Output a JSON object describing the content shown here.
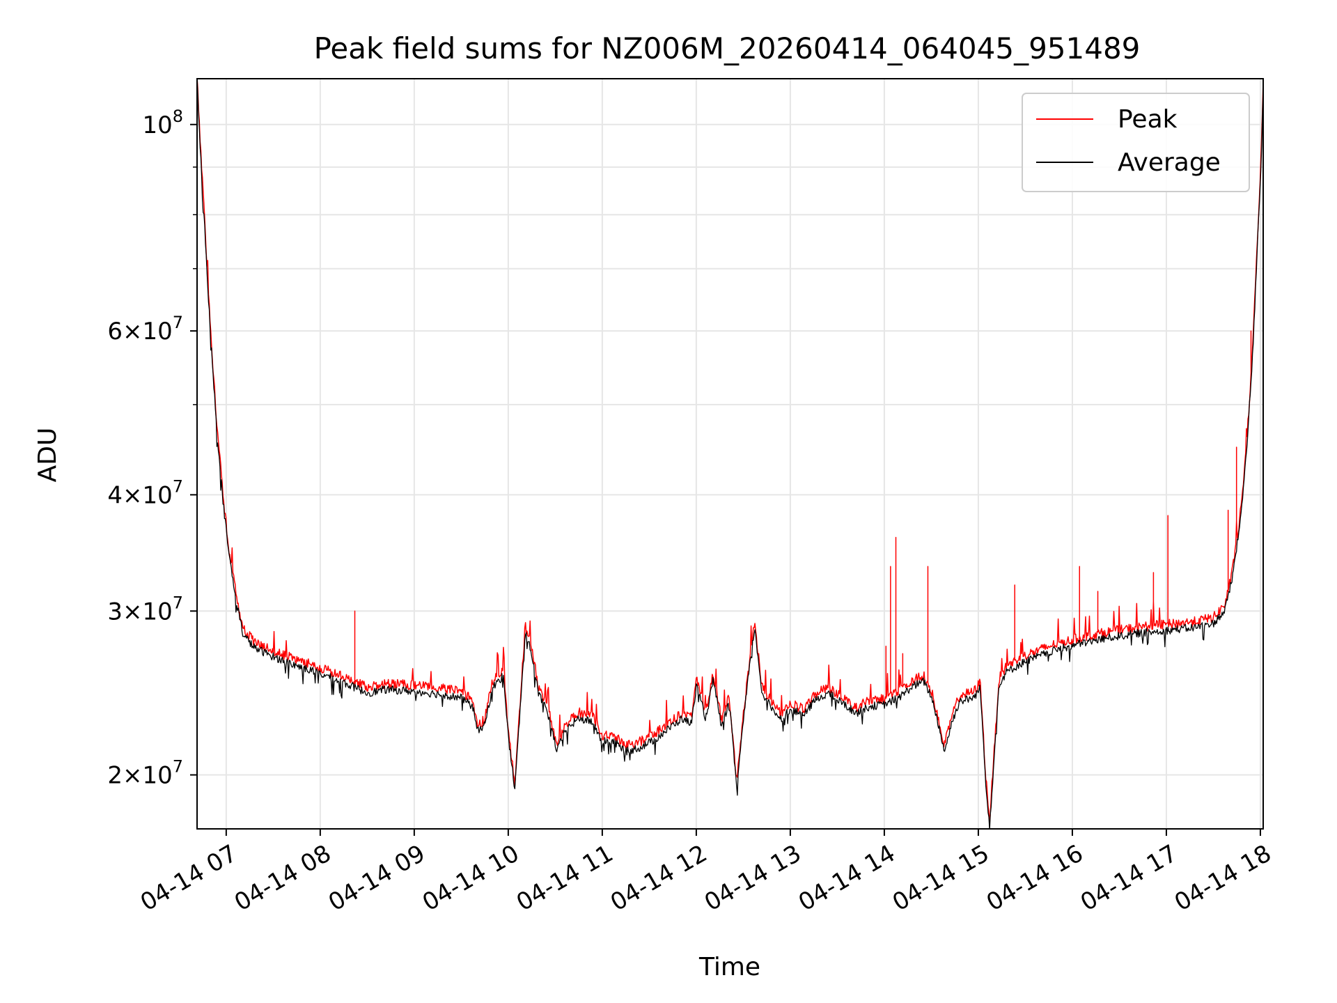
{
  "chart_data": {
    "type": "line",
    "title": "Peak field sums for NZ006M_20260414_064045_951489",
    "xlabel": "Time",
    "ylabel": "ADU",
    "yscale": "log",
    "ylim": [
      17500000,
      112000000
    ],
    "xlim_hours": [
      6.69,
      18.03
    ],
    "grid": true,
    "legend_position": "top-right",
    "x_ticks": [
      {
        "hour": 7,
        "label": "04-14 07"
      },
      {
        "hour": 8,
        "label": "04-14 08"
      },
      {
        "hour": 9,
        "label": "04-14 09"
      },
      {
        "hour": 10,
        "label": "04-14 10"
      },
      {
        "hour": 11,
        "label": "04-14 11"
      },
      {
        "hour": 12,
        "label": "04-14 12"
      },
      {
        "hour": 13,
        "label": "04-14 13"
      },
      {
        "hour": 14,
        "label": "04-14 14"
      },
      {
        "hour": 15,
        "label": "04-14 15"
      },
      {
        "hour": 16,
        "label": "04-14 16"
      },
      {
        "hour": 17,
        "label": "04-14 17"
      },
      {
        "hour": 18,
        "label": "04-14 18"
      }
    ],
    "y_major_ticks": [
      {
        "value": 100000000,
        "mantissa": "",
        "exp": "8"
      },
      {
        "value": 60000000,
        "mantissa": "6",
        "exp": "7"
      },
      {
        "value": 40000000,
        "mantissa": "4",
        "exp": "7"
      },
      {
        "value": 30000000,
        "mantissa": "3",
        "exp": "7"
      },
      {
        "value": 20000000,
        "mantissa": "2",
        "exp": "7"
      }
    ],
    "y_minor_ticks": [
      90000000,
      80000000,
      70000000,
      50000000
    ],
    "series": [
      {
        "name": "Peak",
        "color": "#ff0000",
        "base_offset": 0.015,
        "noise": 0.012,
        "spikes": [
          {
            "hour": 8.37,
            "value": 30000000
          },
          {
            "hour": 14.02,
            "value": 27500000
          },
          {
            "hour": 14.07,
            "value": 33500000
          },
          {
            "hour": 14.12,
            "value": 36000000
          },
          {
            "hour": 14.2,
            "value": 27000000
          },
          {
            "hour": 14.46,
            "value": 33500000
          },
          {
            "hour": 15.39,
            "value": 32000000
          },
          {
            "hour": 16.08,
            "value": 33500000
          },
          {
            "hour": 16.27,
            "value": 31500000
          },
          {
            "hour": 16.86,
            "value": 33000000
          },
          {
            "hour": 17.02,
            "value": 38000000
          },
          {
            "hour": 17.66,
            "value": 38500000
          },
          {
            "hour": 17.75,
            "value": 45000000
          },
          {
            "hour": 17.9,
            "value": 60000000
          }
        ]
      },
      {
        "name": "Average",
        "color": "#000000",
        "base_offset": 0,
        "noise": 0.01,
        "spikes": []
      }
    ],
    "baseline_points": [
      [
        6.69,
        112000000
      ],
      [
        6.72,
        96000000
      ],
      [
        6.77,
        78000000
      ],
      [
        6.83,
        60000000
      ],
      [
        6.9,
        47000000
      ],
      [
        6.97,
        39000000
      ],
      [
        7.03,
        34500000
      ],
      [
        7.1,
        31000000
      ],
      [
        7.18,
        28300000
      ],
      [
        7.3,
        27400000
      ],
      [
        7.5,
        26800000
      ],
      [
        7.7,
        26300000
      ],
      [
        8.0,
        25700000
      ],
      [
        8.3,
        25000000
      ],
      [
        8.5,
        24500000
      ],
      [
        8.7,
        24700000
      ],
      [
        9.0,
        24600000
      ],
      [
        9.3,
        24400000
      ],
      [
        9.5,
        24200000
      ],
      [
        9.62,
        23700000
      ],
      [
        9.68,
        22300000
      ],
      [
        9.75,
        22600000
      ],
      [
        9.83,
        24800000
      ],
      [
        9.95,
        25600000
      ],
      [
        10.0,
        22000000
      ],
      [
        10.07,
        19300000
      ],
      [
        10.12,
        23000000
      ],
      [
        10.18,
        28500000
      ],
      [
        10.25,
        27000000
      ],
      [
        10.32,
        24500000
      ],
      [
        10.42,
        23300000
      ],
      [
        10.52,
        21200000
      ],
      [
        10.6,
        22300000
      ],
      [
        10.75,
        23000000
      ],
      [
        10.9,
        22800000
      ],
      [
        11.0,
        21700000
      ],
      [
        11.1,
        21800000
      ],
      [
        11.25,
        21200000
      ],
      [
        11.4,
        21400000
      ],
      [
        11.55,
        21800000
      ],
      [
        11.7,
        22400000
      ],
      [
        11.85,
        23000000
      ],
      [
        11.95,
        22700000
      ],
      [
        12.0,
        25000000
      ],
      [
        12.1,
        23000000
      ],
      [
        12.18,
        25300000
      ],
      [
        12.27,
        22500000
      ],
      [
        12.35,
        24000000
      ],
      [
        12.43,
        19400000
      ],
      [
        12.5,
        22800000
      ],
      [
        12.56,
        25800000
      ],
      [
        12.62,
        28800000
      ],
      [
        12.7,
        24500000
      ],
      [
        12.8,
        23600000
      ],
      [
        12.9,
        23000000
      ],
      [
        13.0,
        23500000
      ],
      [
        13.15,
        23200000
      ],
      [
        13.25,
        24000000
      ],
      [
        13.4,
        24500000
      ],
      [
        13.55,
        23900000
      ],
      [
        13.7,
        23300000
      ],
      [
        13.85,
        23700000
      ],
      [
        14.0,
        23800000
      ],
      [
        14.15,
        24200000
      ],
      [
        14.3,
        24900000
      ],
      [
        14.42,
        25200000
      ],
      [
        14.5,
        24300000
      ],
      [
        14.57,
        22800000
      ],
      [
        14.64,
        21200000
      ],
      [
        14.72,
        22800000
      ],
      [
        14.8,
        24000000
      ],
      [
        14.95,
        24200000
      ],
      [
        15.02,
        24800000
      ],
      [
        15.08,
        19600000
      ],
      [
        15.12,
        17600000
      ],
      [
        15.17,
        21000000
      ],
      [
        15.22,
        25000000
      ],
      [
        15.3,
        25800000
      ],
      [
        15.5,
        26500000
      ],
      [
        15.8,
        27200000
      ],
      [
        16.1,
        27700000
      ],
      [
        16.4,
        28100000
      ],
      [
        16.7,
        28400000
      ],
      [
        17.0,
        28600000
      ],
      [
        17.3,
        28800000
      ],
      [
        17.5,
        29100000
      ],
      [
        17.62,
        30000000
      ],
      [
        17.7,
        32500000
      ],
      [
        17.78,
        37000000
      ],
      [
        17.85,
        44000000
      ],
      [
        17.92,
        57000000
      ],
      [
        17.97,
        75000000
      ],
      [
        18.01,
        92000000
      ],
      [
        18.03,
        110000000
      ]
    ]
  }
}
